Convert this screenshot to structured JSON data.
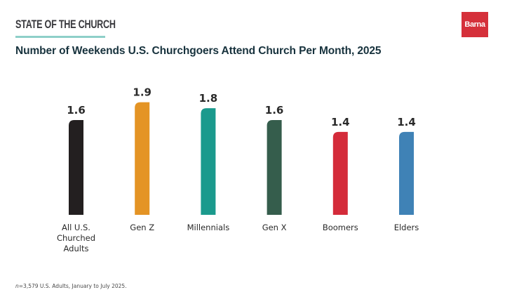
{
  "header": {
    "brand_title": "STATE OF THE CHURCH",
    "logo_text": "Barna",
    "logo_color": "#d5303a",
    "rule_color": "#8ecfc9"
  },
  "footnote": {
    "n_symbol": "n",
    "text": "=3,579 U.S. Adults, January to July 2025."
  },
  "chart_data": {
    "type": "bar",
    "title": "Number of Weekends U.S. Churchgoers Attend Church Per Month, 2025",
    "xlabel": "",
    "ylabel": "",
    "ylim": [
      0,
      1.9
    ],
    "grid": false,
    "legend": "none",
    "categories": [
      "All U.S. Churched Adults",
      "Gen Z",
      "Millennials",
      "Gen X",
      "Boomers",
      "Elders"
    ],
    "category_lines": [
      [
        "All U.S.",
        "Churched",
        "Adults"
      ],
      [
        "Gen Z"
      ],
      [
        "Millennials"
      ],
      [
        "Gen X"
      ],
      [
        "Boomers"
      ],
      [
        "Elders"
      ]
    ],
    "values": [
      1.6,
      1.9,
      1.8,
      1.6,
      1.4,
      1.4
    ],
    "value_labels": [
      "1.6",
      "1.9",
      "1.8",
      "1.6",
      "1.4",
      "1.4"
    ],
    "colors": [
      "#231f20",
      "#e49425",
      "#1b9a8d",
      "#355d4c",
      "#d42b3a",
      "#3f82b6"
    ]
  }
}
